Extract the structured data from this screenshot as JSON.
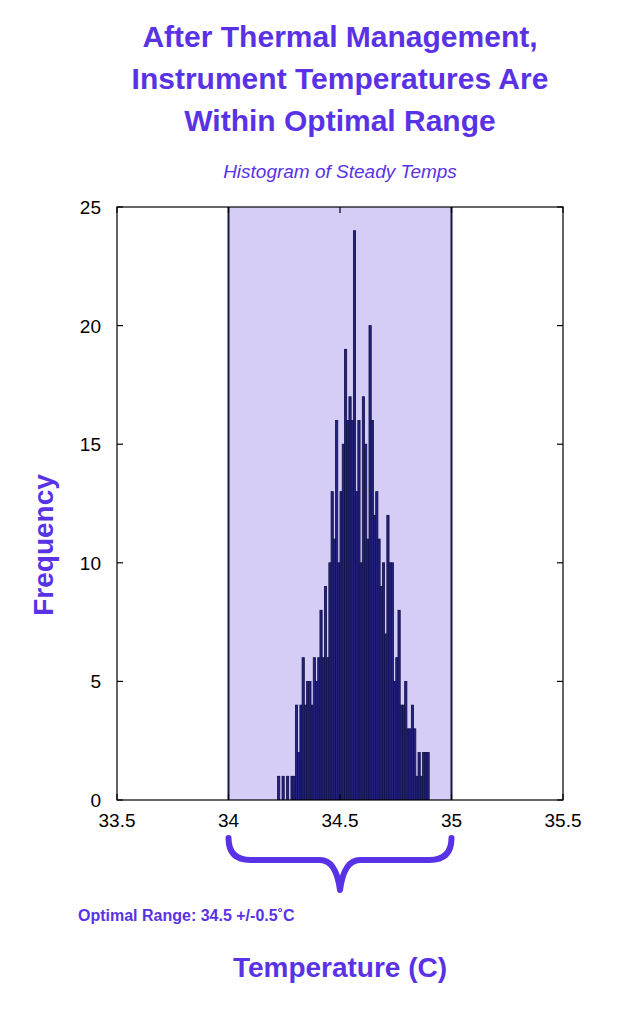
{
  "chart_data": {
    "type": "histogram",
    "title": "After Thermal Management, Instrument Temperatures Are Within Optimal Range",
    "subtitle": "Histogram of Steady Temps",
    "x_label": "Temperature (C)",
    "y_label": "Frequency",
    "annotation": "Optimal Range: 34.5 +/-0.5˚C",
    "optimal_range": [
      34,
      35
    ],
    "bins": [
      34.22,
      34.23,
      34.24,
      34.25,
      34.26,
      34.27,
      34.28,
      34.29,
      34.3,
      34.31,
      34.32,
      34.33,
      34.34,
      34.35,
      34.36,
      34.37,
      34.38,
      34.39,
      34.4,
      34.41,
      34.42,
      34.43,
      34.44,
      34.45,
      34.46,
      34.47,
      34.48,
      34.49,
      34.5,
      34.51,
      34.52,
      34.53,
      34.54,
      34.55,
      34.56,
      34.57,
      34.58,
      34.59,
      34.6,
      34.61,
      34.62,
      34.63,
      34.64,
      34.65,
      34.66,
      34.67,
      34.68,
      34.69,
      34.7,
      34.71,
      34.72,
      34.73,
      34.74,
      34.75,
      34.76,
      34.77,
      34.78,
      34.79,
      34.8,
      34.81,
      34.82,
      34.83,
      34.84,
      34.85,
      34.86,
      34.87,
      34.88,
      34.89,
      34.9
    ],
    "values": [
      1,
      0,
      1,
      0,
      1,
      0,
      1,
      1,
      4,
      2,
      4,
      6,
      4,
      5,
      5,
      4,
      6,
      5,
      6,
      8,
      6,
      9,
      6,
      10,
      13,
      11,
      16,
      10,
      13,
      15,
      19,
      16,
      17,
      16,
      24,
      13,
      16,
      10,
      17,
      15,
      11,
      20,
      16,
      12,
      13,
      11,
      9,
      10,
      7,
      12,
      10,
      10,
      5,
      6,
      8,
      4,
      4,
      5,
      3,
      3,
      4,
      3,
      1,
      2,
      1,
      2,
      2,
      2
    ],
    "color": "#23237e",
    "xlim": [
      33.5,
      35.5
    ],
    "xticks": [
      33.5,
      34,
      34.5,
      35,
      35.5
    ],
    "ylim": [
      0,
      25
    ],
    "yticks": [
      0,
      5,
      10,
      15,
      20,
      25
    ],
    "grid": false
  }
}
